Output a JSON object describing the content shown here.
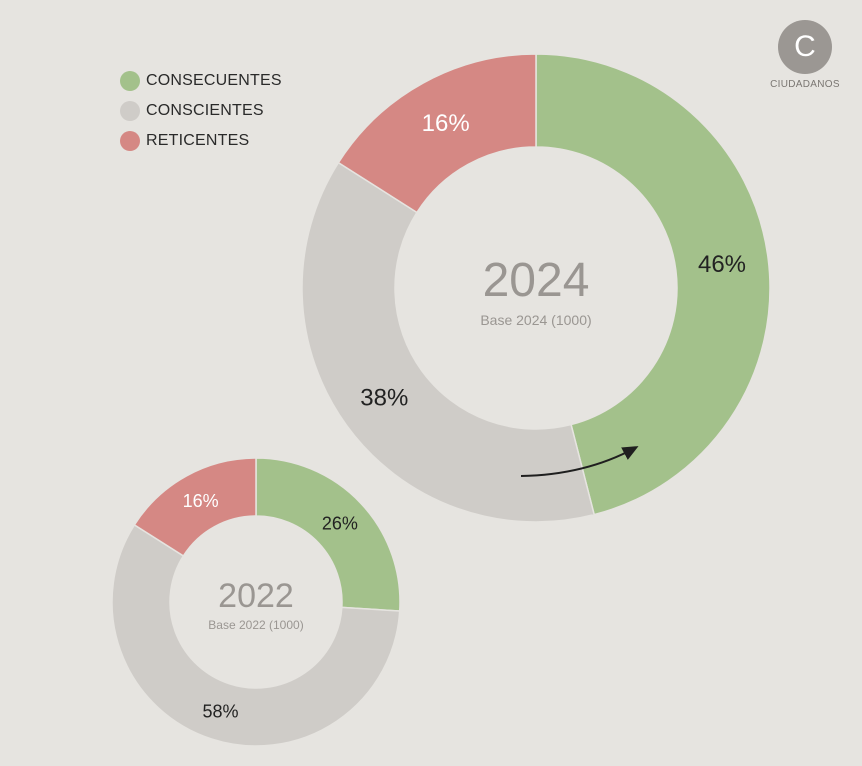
{
  "legend": {
    "items": [
      {
        "label": "CONSECUENTES",
        "color": "#a3c18b"
      },
      {
        "label": "CONSCIENTES",
        "color": "#cfccc8"
      },
      {
        "label": "RETICENTES",
        "color": "#d58884"
      }
    ]
  },
  "logo": {
    "letter": "C",
    "text": "CIUDADANOS"
  },
  "chart_data": [
    {
      "type": "pie",
      "title": "2024",
      "subtitle": "Base 2024 (1000)",
      "categories": [
        "CONSECUENTES",
        "CONSCIENTES",
        "RETICENTES"
      ],
      "values": [
        46,
        38,
        16
      ],
      "labels": [
        "46%",
        "38%",
        "16%"
      ],
      "colors": [
        "#a3c18b",
        "#cfccc8",
        "#d58884"
      ],
      "donut": true
    },
    {
      "type": "pie",
      "title": "2022",
      "subtitle": "Base 2022 (1000)",
      "categories": [
        "CONSECUENTES",
        "CONSCIENTES",
        "RETICENTES"
      ],
      "values": [
        26,
        58,
        16
      ],
      "labels": [
        "26%",
        "58%",
        "16%"
      ],
      "colors": [
        "#a3c18b",
        "#cfccc8",
        "#d58884"
      ],
      "donut": true
    }
  ]
}
